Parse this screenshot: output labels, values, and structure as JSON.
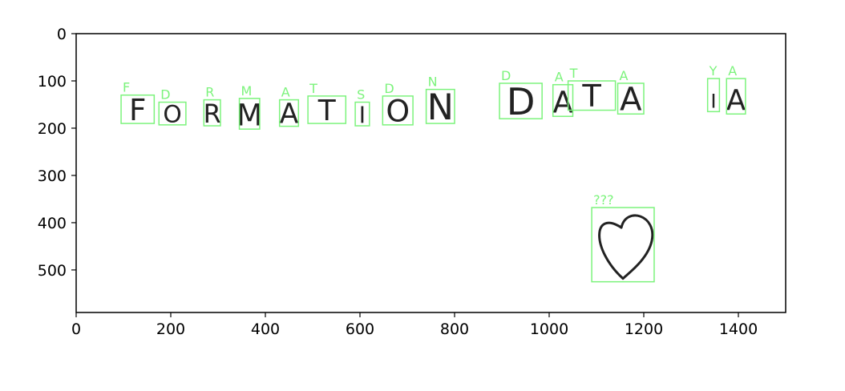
{
  "chart_data": {
    "type": "image-annotation",
    "xlim": [
      0,
      1500
    ],
    "ylim": [
      590,
      0
    ],
    "x_ticks": [
      0,
      200,
      400,
      600,
      800,
      1000,
      1200,
      1400
    ],
    "y_ticks": [
      0,
      100,
      200,
      300,
      400,
      500
    ],
    "detections": [
      {
        "label": "F",
        "glyph": "F",
        "x0": 95,
        "y0": 130,
        "x1": 165,
        "y1": 190
      },
      {
        "label": "D",
        "glyph": "O",
        "x0": 175,
        "y0": 145,
        "x1": 232,
        "y1": 193
      },
      {
        "label": "R",
        "glyph": "R",
        "x0": 270,
        "y0": 140,
        "x1": 305,
        "y1": 195
      },
      {
        "label": "M",
        "glyph": "M",
        "x0": 345,
        "y0": 137,
        "x1": 388,
        "y1": 202
      },
      {
        "label": "A",
        "glyph": "A",
        "x0": 430,
        "y0": 140,
        "x1": 470,
        "y1": 196
      },
      {
        "label": "T",
        "glyph": "T",
        "x0": 490,
        "y0": 132,
        "x1": 570,
        "y1": 190
      },
      {
        "label": "S",
        "glyph": "I",
        "x0": 590,
        "y0": 145,
        "x1": 620,
        "y1": 195
      },
      {
        "label": "D",
        "glyph": "O",
        "x0": 648,
        "y0": 132,
        "x1": 712,
        "y1": 193
      },
      {
        "label": "N",
        "glyph": "N",
        "x0": 740,
        "y0": 118,
        "x1": 800,
        "y1": 190
      },
      {
        "label": "D",
        "glyph": "D",
        "x0": 895,
        "y0": 105,
        "x1": 985,
        "y1": 180
      },
      {
        "label": "A",
        "glyph": "A",
        "x0": 1008,
        "y0": 108,
        "x1": 1050,
        "y1": 175
      },
      {
        "label": "T",
        "glyph": "T",
        "x0": 1040,
        "y0": 100,
        "x1": 1140,
        "y1": 162
      },
      {
        "label": "A",
        "glyph": "A",
        "x0": 1145,
        "y0": 105,
        "x1": 1200,
        "y1": 170
      },
      {
        "label": "Y",
        "glyph": "I",
        "x0": 1335,
        "y0": 95,
        "x1": 1360,
        "y1": 165
      },
      {
        "label": "A",
        "glyph": "A",
        "x0": 1375,
        "y0": 95,
        "x1": 1415,
        "y1": 170
      },
      {
        "label": "???",
        "glyph": "heart",
        "x0": 1090,
        "y0": 368,
        "x1": 1222,
        "y1": 525
      }
    ]
  },
  "colors": {
    "box": "#7cf37c",
    "ink": "#222222",
    "axis": "#000000"
  }
}
